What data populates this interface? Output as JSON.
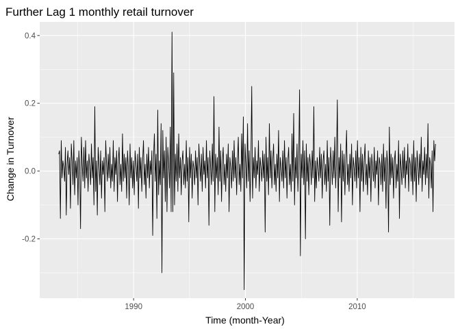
{
  "chart_data": {
    "type": "line",
    "title": "Further Lag 1 monthly retail turnover",
    "xlabel": "Time (month-Year)",
    "ylabel": "Change in Turnover",
    "x_range": [
      1983.3,
      2017.0
    ],
    "xlim": [
      1981.6,
      2018.7
    ],
    "ylim": [
      -0.375,
      0.44
    ],
    "x_ticks": [
      1990,
      2000,
      2010
    ],
    "x_tick_labels": [
      "1990",
      "2000",
      "2010"
    ],
    "y_ticks": [
      -0.2,
      0.0,
      0.2,
      0.4
    ],
    "y_tick_labels": [
      "-0.2",
      "0.0",
      "0.2",
      "0.4"
    ],
    "sampling": "monthly",
    "grid": true,
    "legend": "none",
    "colors": {
      "panel": "#ebebeb",
      "grid_major": "#ffffff",
      "line": "#000000",
      "ticks": "#333333"
    },
    "series": [
      {
        "values": [
          0.05,
          0.06,
          -0.14,
          0.09,
          -0.02,
          0.03,
          0.01,
          -0.03,
          0.07,
          -0.13,
          0.02,
          0.06,
          -0.01,
          0.04,
          -0.11,
          0.08,
          0.03,
          -0.04,
          0.09,
          -0.07,
          0.03,
          -0.02,
          0.04,
          -0.1,
          0.06,
          0.01,
          -0.17,
          0.1,
          0.02,
          -0.03,
          0.07,
          -0.05,
          0.09,
          -0.02,
          0.03,
          -0.06,
          0.05,
          0.01,
          -0.04,
          0.08,
          -0.02,
          0.04,
          -0.1,
          0.19,
          -0.06,
          0.03,
          -0.13,
          0.07,
          0.02,
          -0.04,
          0.06,
          -0.08,
          0.03,
          -0.01,
          0.04,
          -0.12,
          0.09,
          0.02,
          -0.03,
          0.05,
          -0.02,
          0.07,
          -0.05,
          0.02,
          -0.03,
          0.09,
          -0.06,
          0.04,
          -0.01,
          0.06,
          -0.09,
          0.03,
          0.07,
          -0.04,
          0.02,
          -0.06,
          0.11,
          -0.03,
          0.05,
          -0.02,
          0.04,
          -0.08,
          0.06,
          0.01,
          -0.1,
          0.08,
          -0.02,
          0.04,
          -0.05,
          0.03,
          -0.07,
          0.06,
          0.02,
          -0.03,
          0.05,
          -0.11,
          0.07,
          -0.02,
          0.04,
          -0.06,
          0.03,
          0.09,
          -0.04,
          0.02,
          -0.08,
          0.05,
          -0.02,
          0.07,
          -0.05,
          0.03,
          -0.01,
          0.06,
          -0.19,
          0.04,
          0.11,
          -0.03,
          0.05,
          -0.14,
          0.18,
          -0.07,
          0.03,
          -0.04,
          0.14,
          -0.3,
          0.12,
          -0.02,
          0.06,
          -0.09,
          0.1,
          -0.12,
          0.07,
          0.02,
          -0.05,
          0.13,
          -0.12,
          0.41,
          -0.12,
          0.29,
          -0.1,
          0.05,
          -0.03,
          0.08,
          -0.06,
          0.11,
          -0.02,
          0.04,
          -0.07,
          0.03,
          0.06,
          -0.04,
          0.02,
          -0.05,
          0.09,
          -0.03,
          0.04,
          -0.15,
          0.07,
          -0.02,
          0.05,
          -0.08,
          0.03,
          0.01,
          -0.04,
          0.06,
          -0.02,
          0.04,
          -0.1,
          0.08,
          0.02,
          -0.03,
          0.05,
          -0.06,
          0.07,
          -0.01,
          0.03,
          -0.05,
          0.09,
          -0.02,
          0.04,
          -0.16,
          0.06,
          0.01,
          -0.04,
          0.08,
          -0.03,
          0.22,
          -0.12,
          0.05,
          -0.02,
          0.04,
          -0.07,
          0.13,
          -0.03,
          0.06,
          -0.09,
          0.03,
          0.07,
          -0.04,
          0.02,
          -0.06,
          0.05,
          -0.02,
          0.08,
          -0.12,
          0.04,
          0.01,
          -0.05,
          0.06,
          -0.03,
          0.09,
          -0.02,
          0.04,
          -0.07,
          0.03,
          0.1,
          -0.04,
          0.02,
          -0.06,
          0.11,
          -0.02,
          0.16,
          -0.35,
          0.08,
          0.02,
          -0.05,
          0.14,
          -0.03,
          0.06,
          -0.09,
          0.03,
          0.25,
          -0.08,
          0.04,
          -0.02,
          0.07,
          -0.05,
          0.03,
          -0.01,
          0.09,
          -0.06,
          0.04,
          0.01,
          -0.03,
          0.06,
          -0.02,
          0.05,
          -0.18,
          0.1,
          -0.03,
          0.04,
          -0.07,
          0.14,
          -0.02,
          0.06,
          -0.05,
          0.03,
          0.08,
          -0.04,
          0.02,
          -0.06,
          0.05,
          -0.02,
          0.12,
          -0.09,
          0.04,
          0.01,
          -0.03,
          0.06,
          -0.05,
          0.09,
          -0.02,
          0.04,
          -0.08,
          0.03,
          0.07,
          -0.04,
          0.02,
          -0.06,
          0.11,
          -0.03,
          0.17,
          -0.1,
          0.04,
          -0.02,
          0.08,
          -0.06,
          0.03,
          0.24,
          -0.25,
          0.05,
          -0.02,
          0.09,
          -0.04,
          0.06,
          -0.2,
          0.08,
          -0.03,
          0.04,
          -0.07,
          0.05,
          0.02,
          -0.04,
          0.06,
          -0.02,
          0.19,
          -0.09,
          0.03,
          -0.05,
          0.04,
          0.01,
          -0.03,
          0.07,
          -0.02,
          0.05,
          -0.08,
          0.03,
          0.06,
          -0.04,
          0.02,
          -0.06,
          0.09,
          -0.03,
          0.04,
          -0.16,
          0.07,
          0.02,
          -0.04,
          0.06,
          -0.02,
          0.1,
          -0.05,
          0.03,
          0.21,
          -0.12,
          0.04,
          -0.02,
          0.08,
          -0.15,
          0.06,
          -0.03,
          0.05,
          -0.07,
          0.03,
          0.12,
          -0.04,
          0.02,
          -0.06,
          0.05,
          -0.02,
          0.08,
          -0.1,
          0.04,
          0.01,
          -0.03,
          0.06,
          -0.05,
          0.09,
          -0.02,
          0.04,
          -0.12,
          0.07,
          -0.03,
          0.05,
          -0.06,
          0.03,
          0.08,
          -0.04,
          0.02,
          -0.07,
          0.06,
          -0.02,
          0.04,
          -0.09,
          0.05,
          0.01,
          -0.03,
          0.07,
          -0.05,
          0.03,
          -0.01,
          0.06,
          -0.1,
          0.04,
          0.02,
          -0.04,
          0.05,
          -0.06,
          0.08,
          -0.03,
          0.04,
          -0.11,
          0.06,
          0.02,
          -0.18,
          0.13,
          -0.04,
          0.05,
          -0.02,
          0.04,
          -0.08,
          0.03,
          0.06,
          -0.05,
          0.02,
          -0.03,
          0.09,
          -0.14,
          0.05,
          0.01,
          -0.04,
          0.06,
          -0.02,
          0.07,
          -0.05,
          0.03,
          -0.01,
          0.08,
          -0.06,
          0.04,
          0.02,
          -0.03,
          0.05,
          -0.07,
          0.09,
          -0.03,
          0.04,
          -0.09,
          0.06,
          0.02,
          -0.04,
          0.05,
          -0.02,
          0.1,
          -0.06,
          0.03,
          -0.01,
          0.07,
          -0.04,
          0.05,
          -0.02,
          0.14,
          -0.08,
          0.04,
          0.02,
          -0.05,
          0.06,
          -0.12,
          0.09,
          0.03,
          0.08
        ]
      }
    ]
  }
}
